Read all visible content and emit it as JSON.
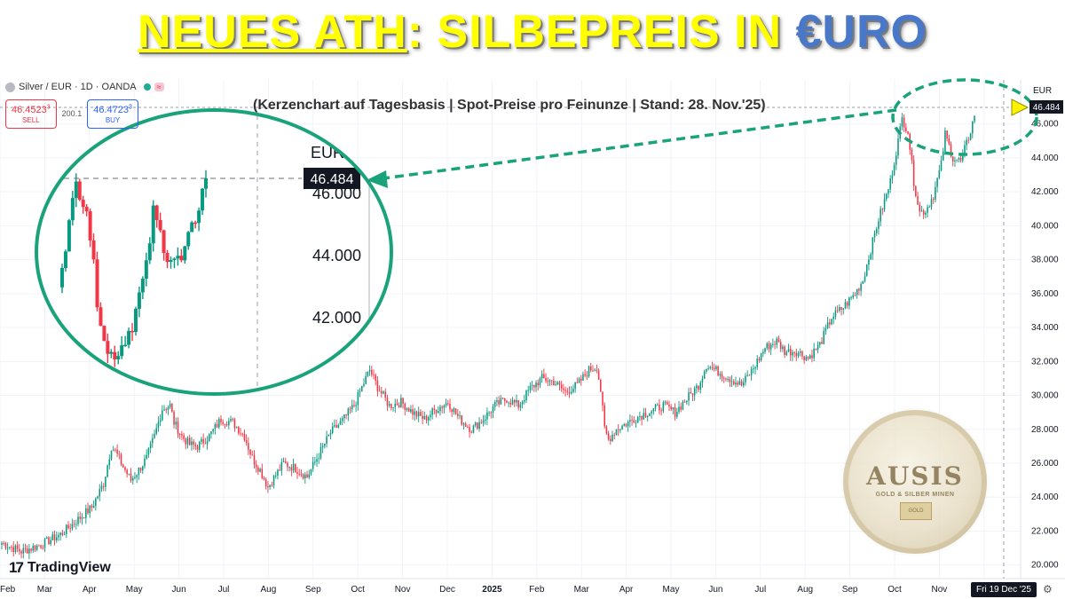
{
  "headline": {
    "part1": "NEUES ATH",
    "part2": ": SILBEPREIS IN ",
    "part3": "€URO"
  },
  "subtitle": "(Kerzenchart auf Tagesbasis | Spot-Preise pro Feinunze | Stand: 28. Nov.'25)",
  "symbol": {
    "name": "Silver / EUR · 1D · OANDA",
    "indicator_badge": "≈"
  },
  "trade": {
    "sell_price": "46.4523",
    "sell_price_sup": "3",
    "sell_label": "SELL",
    "spread": "200.1",
    "buy_price": "46.4723",
    "buy_price_sup": "3",
    "buy_label": "BUY"
  },
  "brand": "TradingView",
  "crosshair_date": "Fri 19 Dec '25",
  "watermark": {
    "name": "AUSIS",
    "tagline": "GOLD & SILBER MINEN",
    "bar_label": "GOLD"
  },
  "colors": {
    "up": "#089981",
    "down": "#f23645",
    "highlight": "#1aa37a",
    "headline": "#ffff00",
    "headline_accent": "#4a78c8"
  },
  "chart_data": {
    "type": "candlestick",
    "currency_label": "EUR",
    "y_ticks": [
      "46.000",
      "44.000",
      "42.000",
      "40.000",
      "38.000",
      "36.000",
      "34.000",
      "32.000",
      "30.000",
      "28.000",
      "26.000",
      "24.000",
      "22.000",
      "20.000"
    ],
    "x_ticks": [
      "Feb",
      "Mar",
      "Apr",
      "May",
      "Jun",
      "Jul",
      "Aug",
      "Sep",
      "Oct",
      "Nov",
      "Dec",
      "2025",
      "Feb",
      "Mar",
      "Apr",
      "May",
      "Jun",
      "Jul",
      "Aug",
      "Sep",
      "Oct",
      "Nov",
      "Dec"
    ],
    "ylim": [
      19.2,
      48.6
    ],
    "last_price": "46.484",
    "last_value": 46.484,
    "zoom": {
      "y_ticks": [
        "46.000",
        "44.000",
        "42.000"
      ],
      "currency_label": "EUR",
      "price_label": "46.484"
    },
    "series_knots": [
      [
        0,
        21.3
      ],
      [
        10,
        20.8
      ],
      [
        20,
        21.2
      ],
      [
        30,
        21.8
      ],
      [
        38,
        22.6
      ],
      [
        46,
        23.4
      ],
      [
        52,
        24.8
      ],
      [
        56,
        27.0
      ],
      [
        58,
        26.7
      ],
      [
        62,
        25.8
      ],
      [
        66,
        25.0
      ],
      [
        70,
        25.6
      ],
      [
        74,
        26.3
      ],
      [
        78,
        27.6
      ],
      [
        82,
        29.2
      ],
      [
        86,
        29.4
      ],
      [
        88,
        28.4
      ],
      [
        92,
        27.6
      ],
      [
        96,
        27.1
      ],
      [
        100,
        27.0
      ],
      [
        106,
        27.6
      ],
      [
        112,
        28.6
      ],
      [
        118,
        28.4
      ],
      [
        124,
        27.6
      ],
      [
        128,
        26.3
      ],
      [
        132,
        25.6
      ],
      [
        136,
        24.6
      ],
      [
        140,
        25.3
      ],
      [
        144,
        26.0
      ],
      [
        150,
        25.7
      ],
      [
        156,
        25.2
      ],
      [
        162,
        26.5
      ],
      [
        168,
        27.8
      ],
      [
        174,
        28.5
      ],
      [
        180,
        29.4
      ],
      [
        186,
        31.0
      ],
      [
        188,
        31.5
      ],
      [
        192,
        30.5
      ],
      [
        198,
        29.4
      ],
      [
        204,
        29.6
      ],
      [
        210,
        29.0
      ],
      [
        216,
        28.6
      ],
      [
        222,
        29.2
      ],
      [
        228,
        29.6
      ],
      [
        234,
        28.6
      ],
      [
        240,
        28.0
      ],
      [
        246,
        28.6
      ],
      [
        252,
        29.4
      ],
      [
        258,
        29.8
      ],
      [
        264,
        29.4
      ],
      [
        270,
        30.4
      ],
      [
        276,
        31.0
      ],
      [
        282,
        30.8
      ],
      [
        288,
        30.2
      ],
      [
        294,
        30.6
      ],
      [
        300,
        31.5
      ],
      [
        304,
        31.7
      ],
      [
        306,
        30.3
      ],
      [
        308,
        28.0
      ],
      [
        310,
        27.4
      ],
      [
        314,
        28.0
      ],
      [
        320,
        28.4
      ],
      [
        326,
        28.8
      ],
      [
        332,
        29.1
      ],
      [
        338,
        29.4
      ],
      [
        344,
        29.0
      ],
      [
        350,
        29.8
      ],
      [
        356,
        30.6
      ],
      [
        360,
        31.8
      ],
      [
        366,
        31.4
      ],
      [
        372,
        31.0
      ],
      [
        378,
        30.6
      ],
      [
        384,
        31.6
      ],
      [
        390,
        32.8
      ],
      [
        396,
        33.2
      ],
      [
        400,
        32.6
      ],
      [
        406,
        32.6
      ],
      [
        412,
        32.2
      ],
      [
        418,
        33.0
      ],
      [
        424,
        34.6
      ],
      [
        430,
        35.2
      ],
      [
        436,
        36.0
      ],
      [
        440,
        36.8
      ],
      [
        444,
        38.6
      ],
      [
        448,
        40.4
      ],
      [
        452,
        41.8
      ],
      [
        454,
        42.6
      ],
      [
        458,
        45.0
      ],
      [
        460,
        46.3
      ],
      [
        463,
        45.6
      ],
      [
        466,
        42.6
      ],
      [
        469,
        40.8
      ],
      [
        472,
        40.9
      ],
      [
        476,
        41.8
      ],
      [
        480,
        43.6
      ],
      [
        482,
        45.4
      ],
      [
        486,
        44.0
      ],
      [
        490,
        43.8
      ],
      [
        494,
        45.2
      ],
      [
        497,
        46.484
      ]
    ]
  }
}
